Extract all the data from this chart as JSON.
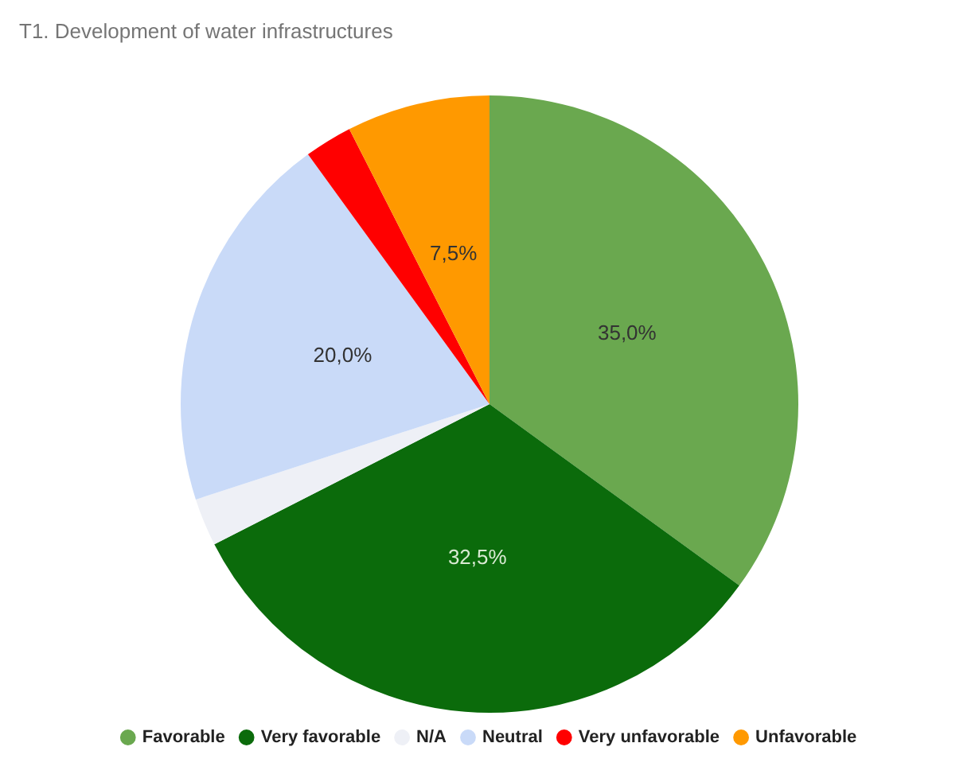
{
  "chart_data": {
    "type": "pie",
    "title": "T1. Development of water infrastructures",
    "categories": [
      "Favorable",
      "Very favorable",
      "N/A",
      "Neutral",
      "Very unfavorable",
      "Unfavorable"
    ],
    "values": [
      35,
      32.5,
      2.5,
      20,
      2.5,
      7.5
    ],
    "colors": [
      "#6aa84f",
      "#0b6b0b",
      "#eef0f6",
      "#c9daf8",
      "#ff0000",
      "#ff9900"
    ],
    "value_labels": [
      "35,0%",
      "32,5%",
      null,
      "20,0%",
      null,
      "7,5%"
    ],
    "legend": "bottom"
  }
}
